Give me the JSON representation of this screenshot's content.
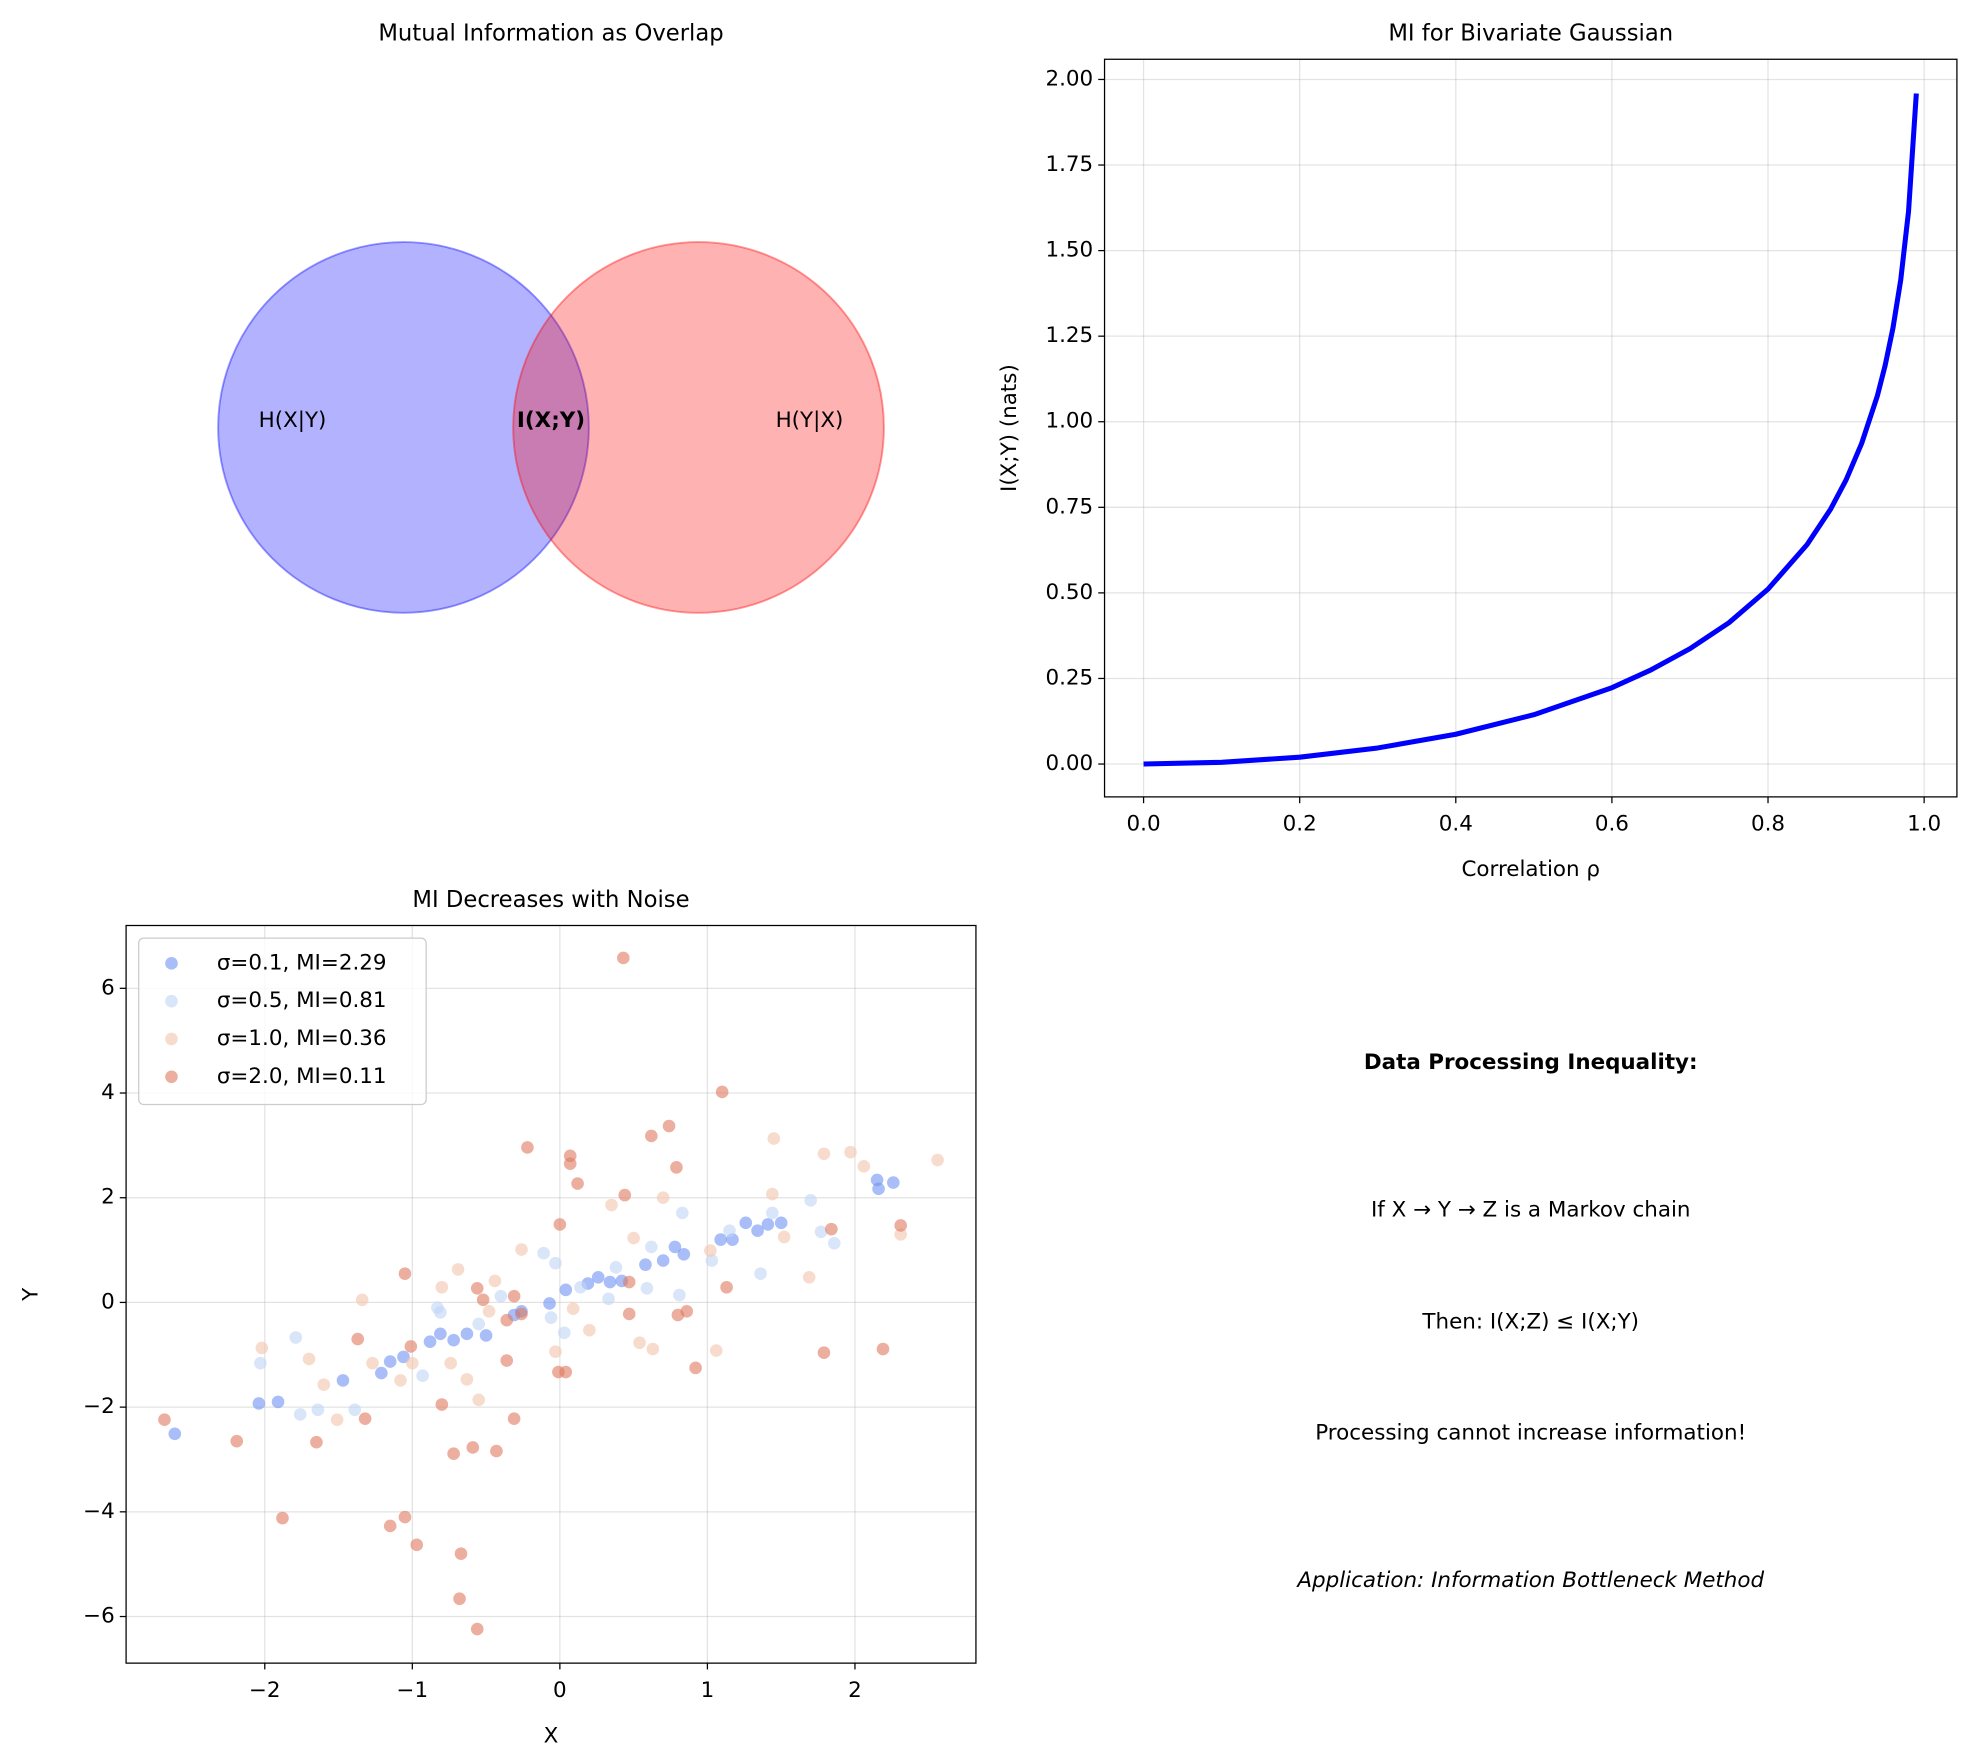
{
  "chart_data": [
    {
      "type": "venn",
      "title": "Mutual Information as Overlap",
      "labels": [
        "H(X|Y)",
        "I(X;Y)",
        "H(Y|X)"
      ],
      "colors": [
        "#0000ff",
        "#ff0000"
      ]
    },
    {
      "type": "line",
      "title": "MI for Bivariate Gaussian",
      "xlabel": "Correlation ρ",
      "ylabel": "I(X;Y) (nats)",
      "grid": true,
      "x": [
        0,
        0.1,
        0.2,
        0.3,
        0.4,
        0.5,
        0.6,
        0.65,
        0.7,
        0.75,
        0.8,
        0.85,
        0.88,
        0.9,
        0.92,
        0.94,
        0.95,
        0.96,
        0.97,
        0.98,
        0.99
      ],
      "series": [
        {
          "color": "#0000ff",
          "values": [
            0,
            0.005,
            0.02,
            0.047,
            0.087,
            0.144,
            0.223,
            0.275,
            0.337,
            0.413,
            0.511,
            0.641,
            0.744,
            0.83,
            0.937,
            1.075,
            1.164,
            1.273,
            1.414,
            1.614,
            1.959
          ]
        }
      ],
      "xlim": [
        -0.05,
        1.042
      ],
      "ylim": [
        -0.096,
        2.059
      ],
      "xticks": [
        {
          "value": 0,
          "label": "0.0"
        },
        {
          "value": 0.2,
          "label": "0.2"
        },
        {
          "value": 0.4,
          "label": "0.4"
        },
        {
          "value": 0.6,
          "label": "0.6"
        },
        {
          "value": 0.8,
          "label": "0.8"
        },
        {
          "value": 1,
          "label": "1.0"
        }
      ],
      "yticks": [
        {
          "value": 0,
          "label": "0.00"
        },
        {
          "value": 0.25,
          "label": "0.25"
        },
        {
          "value": 0.5,
          "label": "0.50"
        },
        {
          "value": 0.75,
          "label": "0.75"
        },
        {
          "value": 1,
          "label": "1.00"
        },
        {
          "value": 1.25,
          "label": "1.25"
        },
        {
          "value": 1.5,
          "label": "1.50"
        },
        {
          "value": 1.75,
          "label": "1.75"
        },
        {
          "value": 2,
          "label": "2.00"
        }
      ]
    },
    {
      "type": "scatter",
      "title": "MI Decreases with Noise",
      "xlabel": "X",
      "ylabel": "Y",
      "grid": true,
      "legend": "upper left",
      "xlim": [
        -2.94,
        2.82
      ],
      "ylim": [
        -6.89,
        7.2
      ],
      "xticks": [
        {
          "value": -2,
          "label": "−2"
        },
        {
          "value": -1,
          "label": "−1"
        },
        0,
        1,
        2
      ],
      "yticks": [
        {
          "value": -6,
          "label": "−6"
        },
        {
          "value": -4,
          "label": "−4"
        },
        {
          "value": -2,
          "label": "−2"
        },
        0,
        2,
        4,
        6
      ],
      "series": [
        {
          "name": "σ=0.1, MI=2.29",
          "color": "#6f92f3",
          "x": [
            -2.61,
            -2.04,
            -1.91,
            -1.47,
            -1.21,
            -1.15,
            -1.06,
            -0.88,
            -0.81,
            -0.72,
            -0.63,
            -0.5,
            -0.31,
            -0.26,
            -0.07,
            0.04,
            0.19,
            0.26,
            0.34,
            0.42,
            0.58,
            0.7,
            0.78,
            0.84,
            1.09,
            1.17,
            1.26,
            1.34,
            1.41,
            1.5,
            2.15,
            2.26,
            2.16
          ],
          "values": [
            -2.51,
            -1.93,
            -1.9,
            -1.49,
            -1.35,
            -1.13,
            -1.04,
            -0.75,
            -0.6,
            -0.72,
            -0.6,
            -0.63,
            -0.24,
            -0.17,
            -0.02,
            0.24,
            0.36,
            0.48,
            0.39,
            0.41,
            0.72,
            0.8,
            1.06,
            0.92,
            1.2,
            1.2,
            1.52,
            1.37,
            1.49,
            1.52,
            2.34,
            2.29,
            2.17
          ]
        },
        {
          "name": "σ=0.5, MI=0.81",
          "color": "#c0d4f5",
          "x": [
            -2.03,
            -1.79,
            -1.76,
            -1.64,
            -1.39,
            -0.93,
            -0.83,
            -0.81,
            -0.55,
            -0.4,
            -0.11,
            -0.03,
            0.03,
            0.14,
            0.33,
            0.38,
            0.59,
            0.62,
            0.81,
            0.83,
            1.03,
            1.15,
            1.36,
            1.44,
            1.7,
            1.77,
            1.86,
            -0.06
          ],
          "values": [
            -1.16,
            -0.67,
            -2.14,
            -2.05,
            -2.05,
            -1.4,
            -0.1,
            -0.19,
            -0.41,
            0.12,
            0.94,
            0.75,
            -0.58,
            0.29,
            0.07,
            0.67,
            0.27,
            1.06,
            0.14,
            1.71,
            0.8,
            1.37,
            0.55,
            1.71,
            1.95,
            1.35,
            1.13,
            -0.29
          ]
        },
        {
          "name": "σ=1.0, MI=0.36",
          "color": "#f2c5ad",
          "x": [
            -2.02,
            -1.7,
            -1.6,
            -1.51,
            -1.34,
            -1.27,
            -1.08,
            -1.0,
            -0.8,
            -0.74,
            -0.69,
            -0.63,
            -0.55,
            -0.48,
            -0.44,
            -0.26,
            -0.03,
            0.09,
            0.2,
            0.35,
            0.5,
            0.54,
            0.63,
            0.7,
            1.02,
            1.06,
            1.44,
            1.45,
            1.52,
            1.69,
            1.79,
            1.97,
            2.06,
            2.31,
            2.56
          ],
          "values": [
            -0.87,
            -1.08,
            -1.57,
            -2.24,
            0.05,
            -1.16,
            -1.49,
            -1.16,
            0.29,
            -1.16,
            0.63,
            -1.47,
            -1.86,
            -0.17,
            0.41,
            1.01,
            -0.94,
            -0.12,
            -0.53,
            1.86,
            1.23,
            -0.77,
            -0.89,
            2.0,
            0.99,
            -0.92,
            2.07,
            3.13,
            1.25,
            0.48,
            2.84,
            2.87,
            2.6,
            1.3,
            2.72
          ]
        },
        {
          "name": "σ=2.0, MI=0.11",
          "color": "#e07a5f",
          "x": [
            -2.68,
            -2.19,
            -1.88,
            -1.65,
            -1.37,
            -1.32,
            -1.15,
            -1.05,
            -1.05,
            -1.01,
            -0.97,
            -0.8,
            -0.72,
            -0.67,
            -0.68,
            -0.59,
            -0.56,
            -0.56,
            -0.52,
            -0.43,
            -0.36,
            -0.36,
            -0.31,
            -0.31,
            -0.26,
            -0.22,
            0,
            -0.01,
            0.04,
            0.07,
            0.07,
            0.12,
            0.43,
            0.44,
            0.47,
            0.47,
            0.62,
            0.74,
            0.79,
            0.8,
            0.86,
            0.92,
            1.1,
            1.13,
            1.79,
            1.84,
            2.19,
            2.31
          ],
          "values": [
            -2.24,
            -2.65,
            -4.12,
            -2.67,
            -0.7,
            -2.22,
            -4.27,
            0.55,
            -4.1,
            -0.84,
            -4.63,
            -1.95,
            -2.89,
            -4.8,
            -5.66,
            -2.77,
            -6.24,
            0.27,
            0.05,
            -2.84,
            -0.34,
            -1.11,
            0.12,
            -2.22,
            -0.22,
            2.96,
            1.49,
            -1.33,
            -1.33,
            2.8,
            2.65,
            2.27,
            6.58,
            2.05,
            0.39,
            -0.22,
            3.18,
            3.37,
            2.58,
            -0.24,
            -0.17,
            -1.25,
            4.02,
            0.29,
            -0.96,
            1.4,
            -0.89,
            1.47
          ]
        }
      ]
    },
    {
      "type": "text",
      "items": [
        {
          "text": "Data Processing Inequality:",
          "color": "#000000",
          "weight": "bold",
          "style": "normal"
        },
        {
          "text": "If X → Y → Z is a Markov chain",
          "color": "#000000",
          "weight": "normal",
          "style": "normal"
        },
        {
          "text": "Then: I(X;Z) ≤ I(X;Y)",
          "color": "#000000",
          "weight": "normal",
          "style": "normal"
        },
        {
          "text": "Processing cannot increase information!",
          "color": "#ff0000",
          "weight": "normal",
          "style": "normal"
        },
        {
          "text": "Application: Information Bottleneck Method",
          "color": "#000000",
          "weight": "normal",
          "style": "italic"
        }
      ]
    }
  ]
}
